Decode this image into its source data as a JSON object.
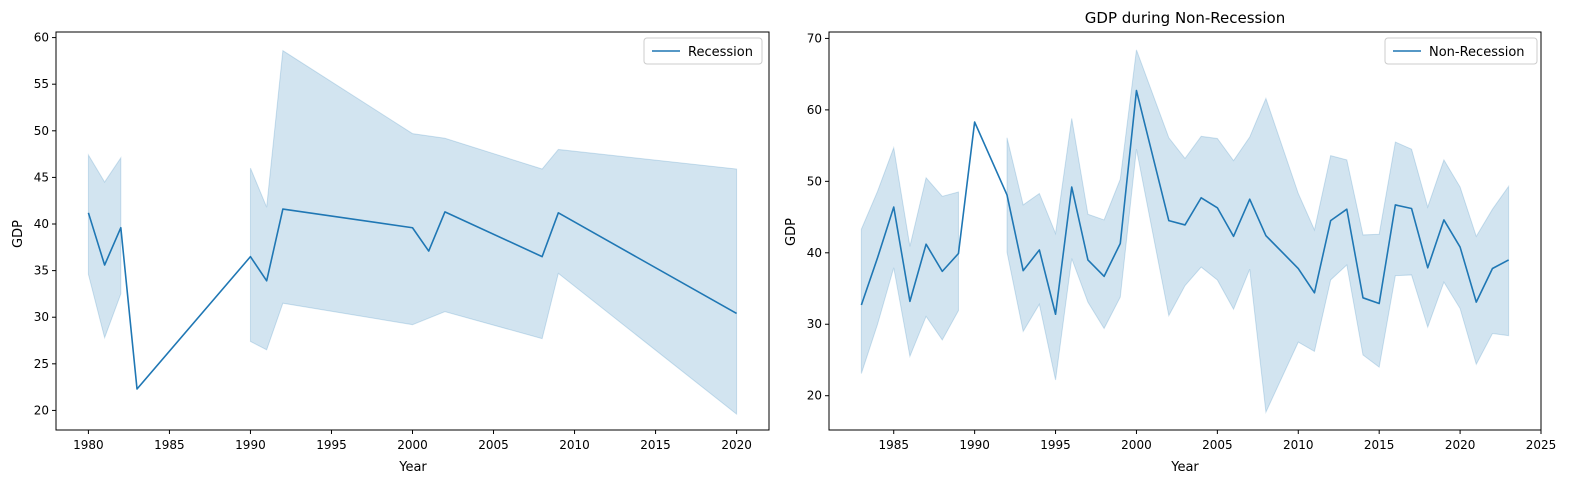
{
  "chart_data": [
    {
      "type": "line",
      "title": "",
      "xlabel": "Year",
      "ylabel": "GDP",
      "xlim": [
        1978,
        2022
      ],
      "ylim": [
        17.9,
        60.6
      ],
      "xticks": [
        1980,
        1985,
        1990,
        1995,
        2000,
        2005,
        2010,
        2015,
        2020
      ],
      "yticks": [
        20,
        25,
        30,
        35,
        40,
        45,
        50,
        55,
        60
      ],
      "legend_position": "top-right",
      "series": [
        {
          "name": "Recession",
          "color": "#1f77b4",
          "x": [
            1980,
            1981,
            1982,
            1983,
            1990,
            1991,
            1992,
            2000,
            2001,
            2002,
            2008,
            2009,
            2020
          ],
          "y": [
            41.2,
            35.6,
            39.6,
            22.3,
            36.5,
            33.9,
            41.6,
            39.6,
            37.1,
            41.3,
            36.5,
            41.2,
            30.4
          ],
          "ci_lower": [
            34.6,
            27.8,
            32.5,
            null,
            27.4,
            26.5,
            31.5,
            29.2,
            null,
            30.6,
            27.7,
            34.7,
            19.6
          ],
          "ci_upper": [
            47.4,
            44.5,
            47.1,
            null,
            46.0,
            41.8,
            58.6,
            49.7,
            45.2,
            49.2,
            45.9,
            48.0,
            45.9
          ]
        }
      ],
      "ci_segments": [
        [
          1980,
          1982
        ],
        [
          1990,
          2020
        ]
      ]
    },
    {
      "type": "line",
      "title": "GDP during Non-Recession",
      "xlabel": "Year",
      "ylabel": "GDP",
      "xlim": [
        1981,
        2025
      ],
      "ylim": [
        15.2,
        70.9
      ],
      "xticks": [
        1985,
        1990,
        1995,
        2000,
        2005,
        2010,
        2015,
        2020,
        2025
      ],
      "yticks": [
        20,
        30,
        40,
        50,
        60,
        70
      ],
      "legend_position": "top-right",
      "series": [
        {
          "name": "Non-Recession",
          "color": "#1f77b4",
          "x": [
            1983,
            1984,
            1985,
            1986,
            1987,
            1988,
            1989,
            1990,
            1992,
            1993,
            1994,
            1995,
            1996,
            1997,
            1998,
            1999,
            2000,
            2002,
            2003,
            2004,
            2005,
            2006,
            2007,
            2008,
            2010,
            2011,
            2012,
            2013,
            2014,
            2015,
            2016,
            2017,
            2018,
            2019,
            2020,
            2021,
            2022,
            2023
          ],
          "y": [
            32.7,
            39.3,
            46.4,
            33.2,
            41.2,
            37.4,
            39.9,
            58.3,
            48.1,
            37.5,
            40.4,
            31.4,
            49.2,
            39.0,
            36.7,
            41.3,
            62.7,
            44.5,
            43.9,
            47.7,
            46.3,
            42.3,
            47.5,
            42.4,
            37.8,
            34.4,
            44.5,
            46.1,
            33.7,
            32.9,
            46.7,
            46.2,
            37.9,
            44.6,
            40.8,
            33.1,
            37.8,
            39.0
          ],
          "ci_lower": [
            23.1,
            30.0,
            37.9,
            25.5,
            31.1,
            27.8,
            31.9,
            null,
            40.1,
            29.0,
            32.8,
            22.2,
            39.2,
            33.1,
            29.4,
            33.8,
            54.5,
            31.2,
            35.4,
            38.0,
            36.2,
            32.1,
            37.7,
            17.7,
            27.5,
            26.2,
            36.2,
            38.3,
            25.7,
            24.0,
            36.8,
            36.9,
            29.6,
            35.9,
            32.2,
            24.4,
            28.7,
            28.4
          ],
          "ci_upper": [
            43.3,
            48.6,
            54.7,
            40.9,
            50.5,
            47.9,
            48.5,
            null,
            56.1,
            46.7,
            48.3,
            42.7,
            58.8,
            45.4,
            44.6,
            50.3,
            68.4,
            56.1,
            53.2,
            56.3,
            56.0,
            52.9,
            56.2,
            61.6,
            48.3,
            43.2,
            53.6,
            53.0,
            42.5,
            42.6,
            55.5,
            54.5,
            46.4,
            53.0,
            49.2,
            42.3,
            46.1,
            49.3
          ]
        }
      ],
      "ci_segments": [
        [
          1983,
          1989
        ],
        [
          1992,
          2023
        ]
      ]
    }
  ]
}
